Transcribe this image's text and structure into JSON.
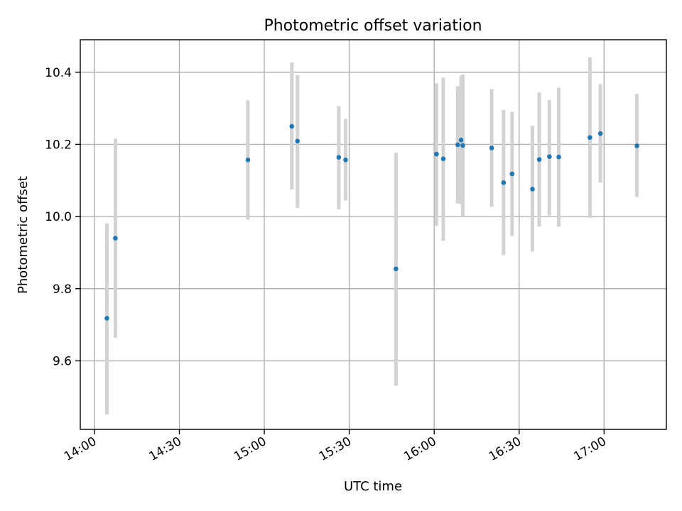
{
  "chart_data": {
    "type": "scatter",
    "title": "Photometric offset variation",
    "xlabel": "UTC time",
    "ylabel": "Photometric offset",
    "xlim_minutes": [
      835,
      1042
    ],
    "ylim": [
      9.41,
      10.49
    ],
    "grid": true,
    "x_ticks": [
      {
        "minutes": 840,
        "label": "14:00"
      },
      {
        "minutes": 870,
        "label": "14:30"
      },
      {
        "minutes": 900,
        "label": "15:00"
      },
      {
        "minutes": 930,
        "label": "15:30"
      },
      {
        "minutes": 960,
        "label": "16:00"
      },
      {
        "minutes": 990,
        "label": "16:30"
      },
      {
        "minutes": 1020,
        "label": "17:00"
      }
    ],
    "y_ticks": [
      {
        "value": 9.6,
        "label": "9.6"
      },
      {
        "value": 9.8,
        "label": "9.8"
      },
      {
        "value": 10.0,
        "label": "10.0"
      },
      {
        "value": 10.2,
        "label": "10.2"
      },
      {
        "value": 10.4,
        "label": "10.4"
      }
    ],
    "point_color": "#1f77b4",
    "errorbar_color": "#d3d3d3",
    "points": [
      {
        "t": 844.4,
        "y": 9.718,
        "ylow": 9.451,
        "yhigh": 9.981
      },
      {
        "t": 847.4,
        "y": 9.94,
        "ylow": 9.664,
        "yhigh": 10.216
      },
      {
        "t": 894.2,
        "y": 10.157,
        "ylow": 9.991,
        "yhigh": 10.322
      },
      {
        "t": 909.7,
        "y": 10.25,
        "ylow": 10.075,
        "yhigh": 10.427
      },
      {
        "t": 911.7,
        "y": 10.209,
        "ylow": 10.024,
        "yhigh": 10.392
      },
      {
        "t": 926.3,
        "y": 10.164,
        "ylow": 10.02,
        "yhigh": 10.306
      },
      {
        "t": 928.7,
        "y": 10.157,
        "ylow": 10.044,
        "yhigh": 10.271
      },
      {
        "t": 946.5,
        "y": 9.855,
        "ylow": 9.531,
        "yhigh": 10.177
      },
      {
        "t": 960.8,
        "y": 10.173,
        "ylow": 9.974,
        "yhigh": 10.369
      },
      {
        "t": 963.2,
        "y": 10.16,
        "ylow": 9.933,
        "yhigh": 10.385
      },
      {
        "t": 968.3,
        "y": 10.199,
        "ylow": 10.036,
        "yhigh": 10.361
      },
      {
        "t": 969.5,
        "y": 10.212,
        "ylow": 10.034,
        "yhigh": 10.39
      },
      {
        "t": 970.1,
        "y": 10.197,
        "ylow": 10.0,
        "yhigh": 10.394
      },
      {
        "t": 980.3,
        "y": 10.19,
        "ylow": 10.027,
        "yhigh": 10.353
      },
      {
        "t": 984.5,
        "y": 10.094,
        "ylow": 9.893,
        "yhigh": 10.295
      },
      {
        "t": 987.5,
        "y": 10.118,
        "ylow": 9.946,
        "yhigh": 10.29
      },
      {
        "t": 994.7,
        "y": 10.076,
        "ylow": 9.903,
        "yhigh": 10.252
      },
      {
        "t": 997.1,
        "y": 10.158,
        "ylow": 9.972,
        "yhigh": 10.344
      },
      {
        "t": 1000.7,
        "y": 10.166,
        "ylow": 10.003,
        "yhigh": 10.323
      },
      {
        "t": 1004.0,
        "y": 10.165,
        "ylow": 9.972,
        "yhigh": 10.357
      },
      {
        "t": 1015.0,
        "y": 10.219,
        "ylow": 9.996,
        "yhigh": 10.441
      },
      {
        "t": 1018.7,
        "y": 10.23,
        "ylow": 10.094,
        "yhigh": 10.367
      },
      {
        "t": 1031.6,
        "y": 10.196,
        "ylow": 10.054,
        "yhigh": 10.34
      }
    ]
  }
}
